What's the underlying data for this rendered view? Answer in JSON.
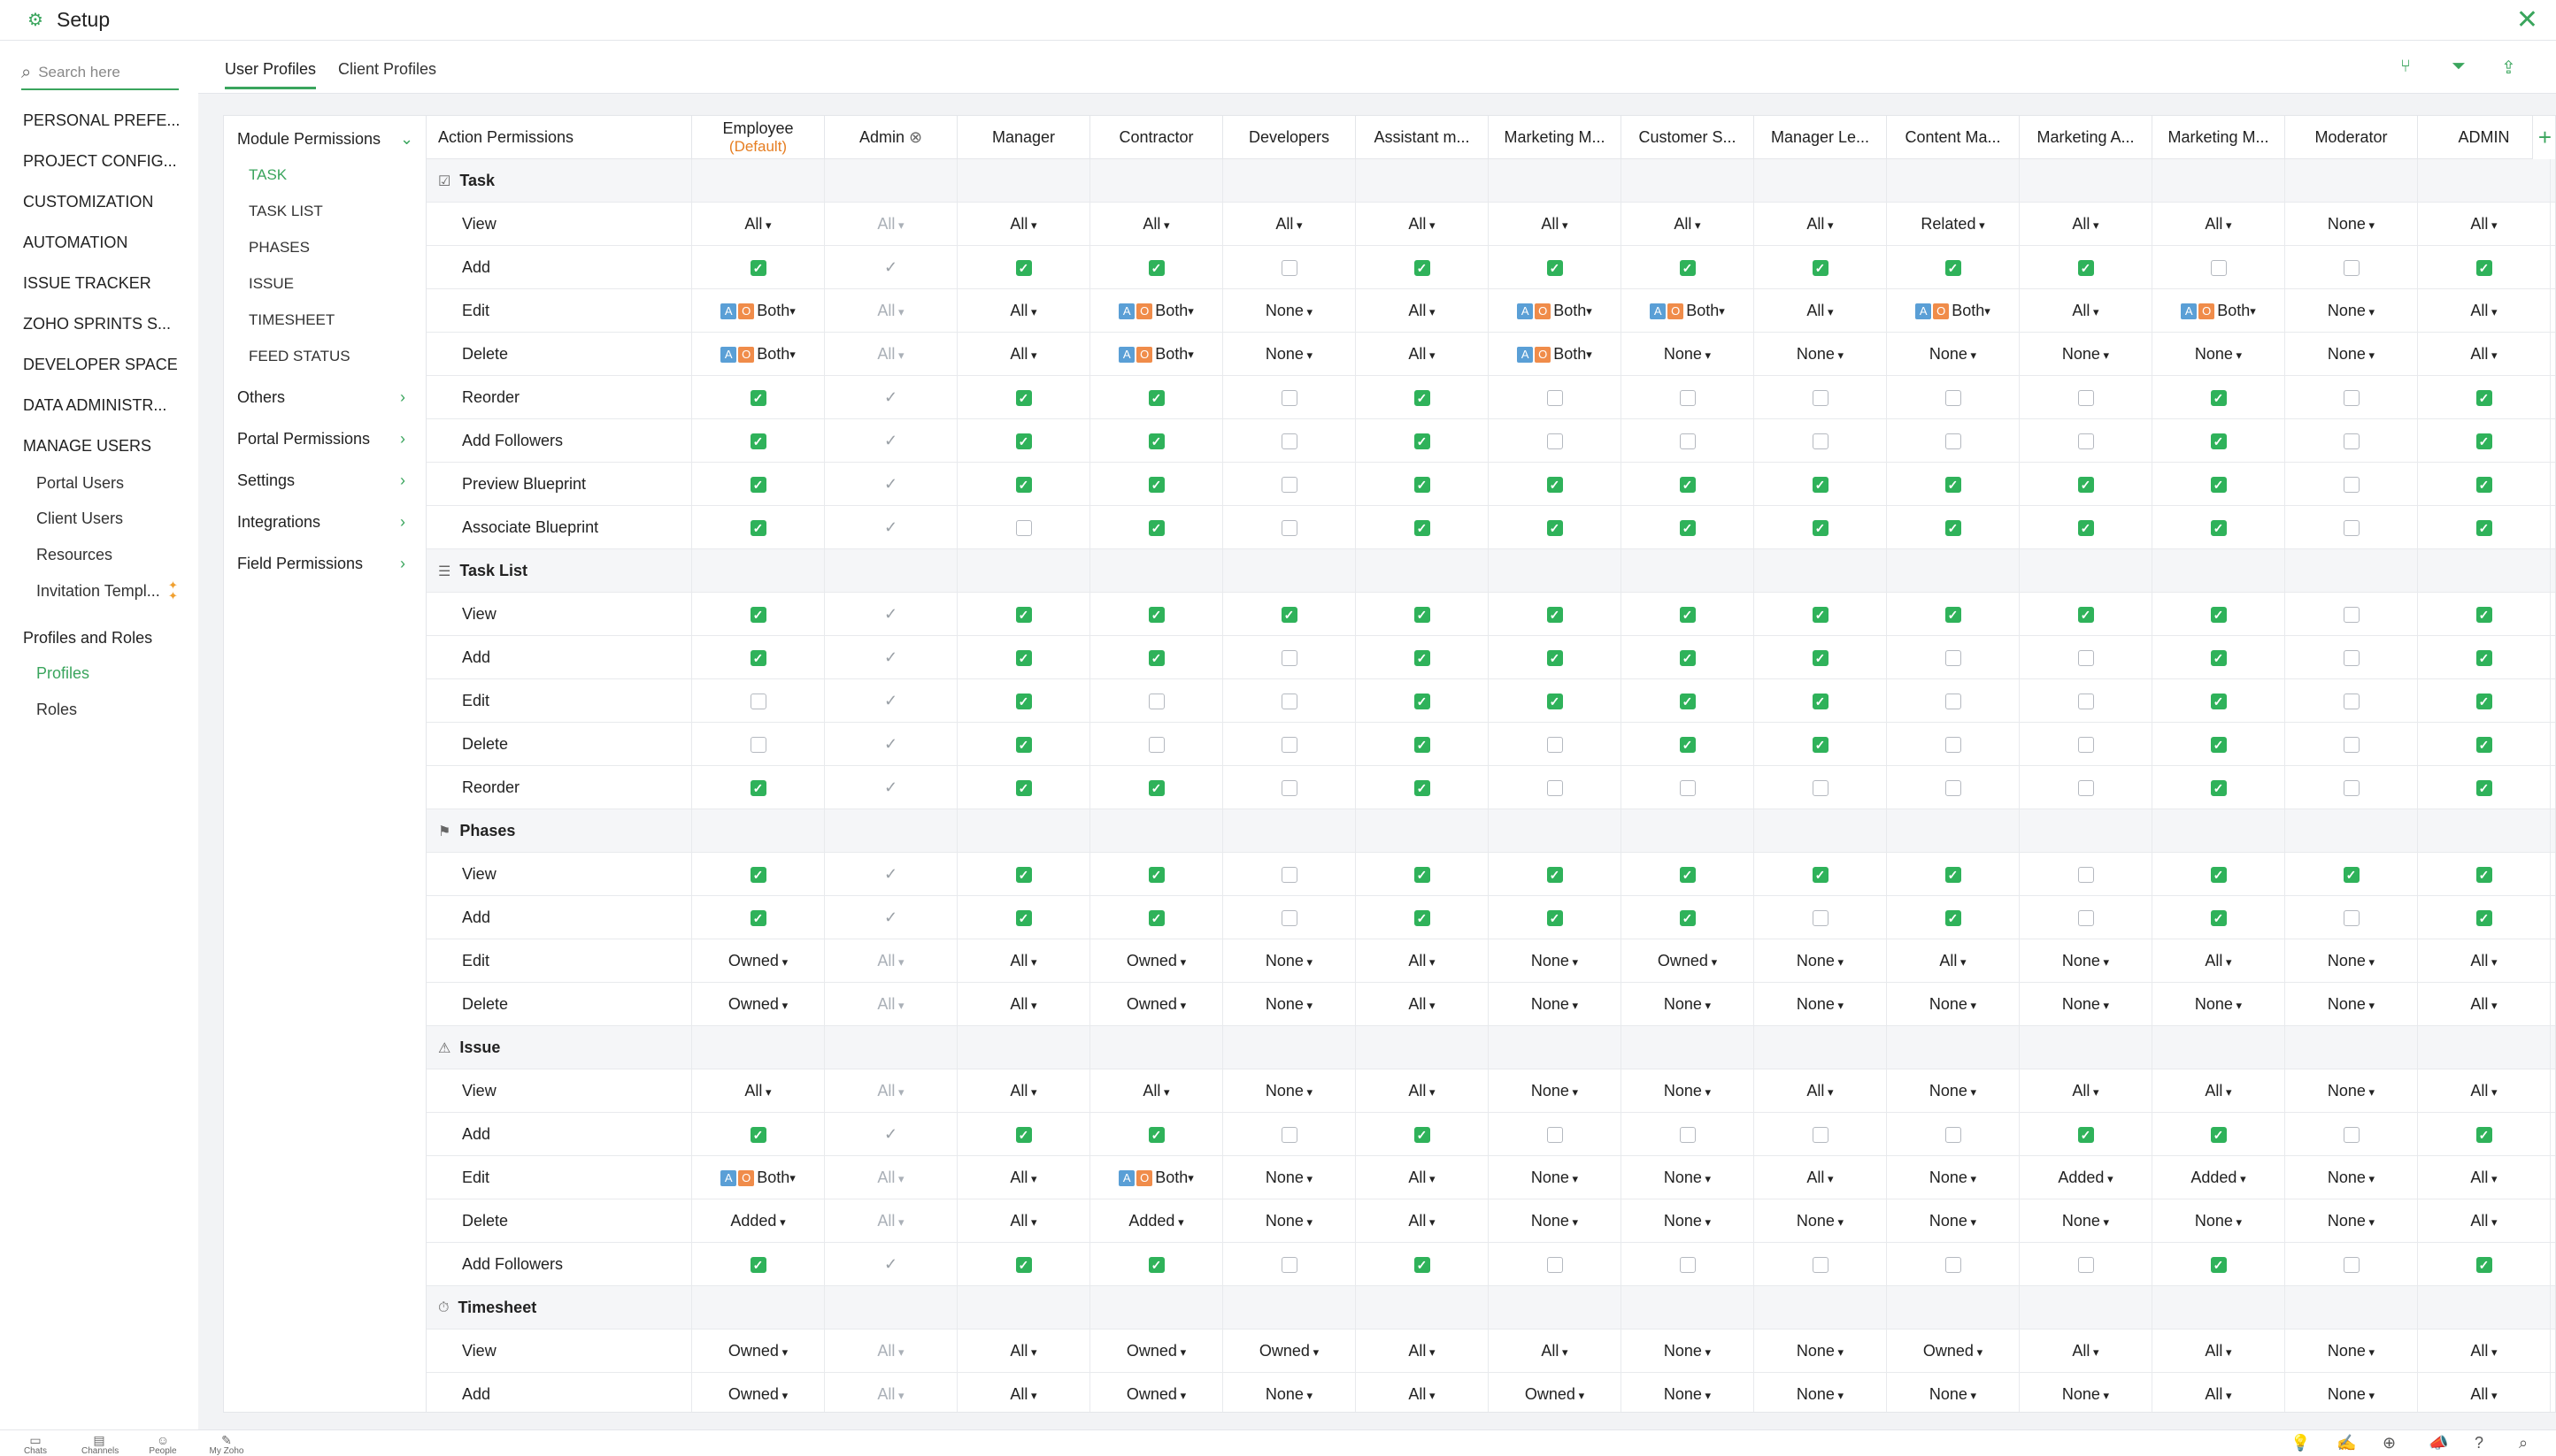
{
  "window": {
    "title": "Setup",
    "close": "✕",
    "gear": "⚙"
  },
  "search": {
    "placeholder": "Search here",
    "icon": "search-icon"
  },
  "sidebar": {
    "items": [
      {
        "label": "PERSONAL PREFE...",
        "name": "sidebar-item-personal-preferences"
      },
      {
        "label": "PROJECT CONFIG...",
        "name": "sidebar-item-project-configuration"
      },
      {
        "label": "CUSTOMIZATION",
        "name": "sidebar-item-customization"
      },
      {
        "label": "AUTOMATION",
        "name": "sidebar-item-automation"
      },
      {
        "label": "ISSUE TRACKER",
        "name": "sidebar-item-issue-tracker"
      },
      {
        "label": "ZOHO SPRINTS S...",
        "name": "sidebar-item-zoho-sprints"
      },
      {
        "label": "DEVELOPER SPACE",
        "name": "sidebar-item-developer-space"
      },
      {
        "label": "DATA ADMINISTR...",
        "name": "sidebar-item-data-administration"
      },
      {
        "label": "MANAGE USERS",
        "name": "sidebar-item-manage-users"
      }
    ],
    "manage_users": [
      "Portal Users",
      "Client Users",
      "Resources",
      "Invitation Templ..."
    ],
    "profiles_roles": {
      "heading": "Profiles and Roles",
      "items": [
        "Profiles",
        "Roles"
      ]
    }
  },
  "tabs": {
    "user_profiles": "User Profiles",
    "client_profiles": "Client Profiles"
  },
  "module_nav": {
    "module_permissions": "Module Permissions",
    "modules": [
      "TASK",
      "TASK LIST",
      "PHASES",
      "ISSUE",
      "TIMESHEET",
      "FEED STATUS"
    ],
    "groups": [
      "Others",
      "Portal Permissions",
      "Settings",
      "Integrations",
      "Field Permissions"
    ]
  },
  "table": {
    "first_header": "Action Permissions",
    "columns": [
      {
        "label": "Employee",
        "sub": "(Default)"
      },
      {
        "label": "Admin",
        "sub": ""
      },
      {
        "label": "Manager",
        "sub": ""
      },
      {
        "label": "Contractor",
        "sub": ""
      },
      {
        "label": "Developers",
        "sub": ""
      },
      {
        "label": "Assistant m...",
        "sub": ""
      },
      {
        "label": "Marketing M...",
        "sub": ""
      },
      {
        "label": "Customer S...",
        "sub": ""
      },
      {
        "label": "Manager Le...",
        "sub": ""
      },
      {
        "label": "Content Ma...",
        "sub": ""
      },
      {
        "label": "Marketing A...",
        "sub": ""
      },
      {
        "label": "Marketing M...",
        "sub": ""
      },
      {
        "label": "Moderator",
        "sub": ""
      },
      {
        "label": "ADMIN",
        "sub": ""
      }
    ],
    "sections": [
      {
        "title": "Task",
        "icon": "task-icon",
        "rows": [
          {
            "label": "View",
            "cells": [
              "All",
              "~All",
              "All",
              "All",
              "All",
              "All",
              "All",
              "All",
              "All",
              "Related",
              "All",
              "All",
              "None",
              "All"
            ]
          },
          {
            "label": "Add",
            "cells": [
              1,
              "x",
              1,
              1,
              0,
              1,
              1,
              1,
              1,
              1,
              1,
              0,
              0,
              1
            ]
          },
          {
            "label": "Edit",
            "cells": [
              "*Both",
              "~All",
              "All",
              "*Both",
              "None",
              "All",
              "*Both",
              "*Both",
              "All",
              "*Both",
              "All",
              "*Both",
              "None",
              "All"
            ]
          },
          {
            "label": "Delete",
            "cells": [
              "*Both",
              "~All",
              "All",
              "*Both",
              "None",
              "All",
              "*Both",
              "None",
              "None",
              "None",
              "None",
              "None",
              "None",
              "All"
            ]
          },
          {
            "label": "Reorder",
            "cells": [
              1,
              "x",
              1,
              1,
              0,
              1,
              0,
              0,
              0,
              0,
              0,
              1,
              0,
              1
            ]
          },
          {
            "label": "Add Followers",
            "cells": [
              1,
              "x",
              1,
              1,
              0,
              1,
              0,
              0,
              0,
              0,
              0,
              1,
              0,
              1
            ]
          },
          {
            "label": "Preview Blueprint",
            "cells": [
              1,
              "x",
              1,
              1,
              0,
              1,
              1,
              1,
              1,
              1,
              1,
              1,
              0,
              1
            ]
          },
          {
            "label": "Associate Blueprint",
            "cells": [
              1,
              "x",
              0,
              1,
              0,
              1,
              1,
              1,
              1,
              1,
              1,
              1,
              0,
              1
            ]
          }
        ]
      },
      {
        "title": "Task List",
        "icon": "task-list-icon",
        "rows": [
          {
            "label": "View",
            "cells": [
              1,
              "x",
              1,
              1,
              1,
              1,
              1,
              1,
              1,
              1,
              1,
              1,
              0,
              1
            ]
          },
          {
            "label": "Add",
            "cells": [
              1,
              "x",
              1,
              1,
              0,
              1,
              1,
              1,
              1,
              0,
              0,
              1,
              0,
              1
            ]
          },
          {
            "label": "Edit",
            "cells": [
              0,
              "x",
              1,
              0,
              0,
              1,
              1,
              1,
              1,
              0,
              0,
              1,
              0,
              1
            ]
          },
          {
            "label": "Delete",
            "cells": [
              0,
              "x",
              1,
              0,
              0,
              1,
              0,
              1,
              1,
              0,
              0,
              1,
              0,
              1
            ]
          },
          {
            "label": "Reorder",
            "cells": [
              1,
              "x",
              1,
              1,
              0,
              1,
              0,
              0,
              0,
              0,
              0,
              1,
              0,
              1
            ]
          }
        ]
      },
      {
        "title": "Phases",
        "icon": "phases-icon",
        "rows": [
          {
            "label": "View",
            "cells": [
              1,
              "x",
              1,
              1,
              0,
              1,
              1,
              1,
              1,
              1,
              0,
              1,
              1,
              1
            ]
          },
          {
            "label": "Add",
            "cells": [
              1,
              "x",
              1,
              1,
              0,
              1,
              1,
              1,
              0,
              1,
              0,
              1,
              0,
              1
            ]
          },
          {
            "label": "Edit",
            "cells": [
              "Owned",
              "~All",
              "All",
              "Owned",
              "None",
              "All",
              "None",
              "Owned",
              "None",
              "All",
              "None",
              "All",
              "None",
              "All"
            ]
          },
          {
            "label": "Delete",
            "cells": [
              "Owned",
              "~All",
              "All",
              "Owned",
              "None",
              "All",
              "None",
              "None",
              "None",
              "None",
              "None",
              "None",
              "None",
              "All"
            ]
          }
        ]
      },
      {
        "title": "Issue",
        "icon": "issue-icon",
        "rows": [
          {
            "label": "View",
            "cells": [
              "All",
              "~All",
              "All",
              "All",
              "None",
              "All",
              "None",
              "None",
              "All",
              "None",
              "All",
              "All",
              "None",
              "All"
            ]
          },
          {
            "label": "Add",
            "cells": [
              1,
              "x",
              1,
              1,
              0,
              1,
              0,
              0,
              0,
              0,
              1,
              1,
              0,
              1
            ]
          },
          {
            "label": "Edit",
            "cells": [
              "*Both",
              "~All",
              "All",
              "*Both",
              "None",
              "All",
              "None",
              "None",
              "All",
              "None",
              "Added",
              "Added",
              "None",
              "All"
            ]
          },
          {
            "label": "Delete",
            "cells": [
              "Added",
              "~All",
              "All",
              "Added",
              "None",
              "All",
              "None",
              "None",
              "None",
              "None",
              "None",
              "None",
              "None",
              "All"
            ]
          },
          {
            "label": "Add Followers",
            "cells": [
              1,
              "x",
              1,
              1,
              0,
              1,
              0,
              0,
              0,
              0,
              0,
              1,
              0,
              1
            ]
          }
        ]
      },
      {
        "title": "Timesheet",
        "icon": "timesheet-icon",
        "rows": [
          {
            "label": "View",
            "cells": [
              "Owned",
              "~All",
              "All",
              "Owned",
              "Owned",
              "All",
              "All",
              "None",
              "None",
              "Owned",
              "All",
              "All",
              "None",
              "All"
            ]
          },
          {
            "label": "Add",
            "cells": [
              "Owned",
              "~All",
              "All",
              "Owned",
              "None",
              "All",
              "Owned",
              "None",
              "None",
              "None",
              "None",
              "All",
              "None",
              "All"
            ]
          }
        ]
      }
    ]
  },
  "bottom": {
    "items": [
      "Chats",
      "Channels",
      "People",
      "My Zoho"
    ]
  },
  "colors": {
    "accent": "#3aa55d",
    "checkbox": "#2fb25a",
    "default_tag": "#e67e22"
  }
}
